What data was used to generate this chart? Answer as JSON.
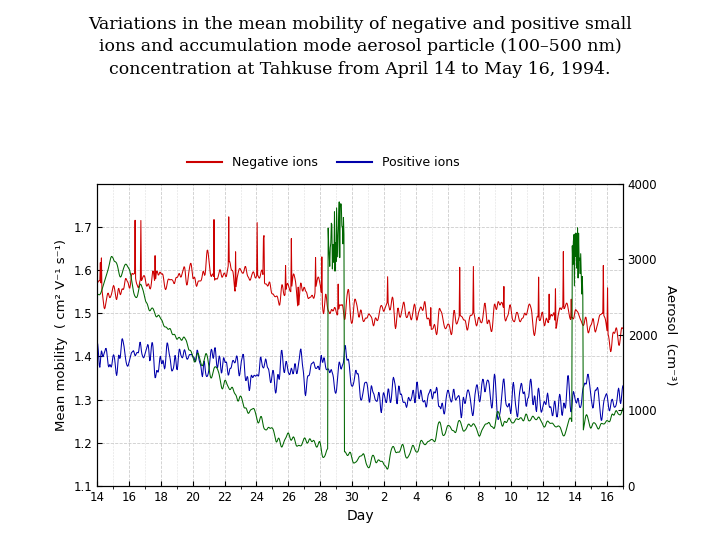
{
  "title_line1": "Variations in the mean mobility of negative and positive small",
  "title_line2": "ions and accumulation mode aerosol particle (100–500 nm)",
  "title_line3": "concentration at Tahkuse from April 14 to May 16, 1994.",
  "title_fontsize": 12.5,
  "xlabel": "Day",
  "ylabel_left": "Mean mobility  ( cm² V⁻¹ s⁻¹)",
  "ylabel_right": "Aerosol  (cm⁻³)",
  "ylim_left": [
    1.1,
    1.8
  ],
  "ylim_right": [
    0,
    4000
  ],
  "yticks_left": [
    1.1,
    1.2,
    1.3,
    1.4,
    1.5,
    1.6,
    1.7
  ],
  "yticks_right": [
    0,
    1000,
    2000,
    3000,
    4000
  ],
  "color_negative": "#cc0000",
  "color_positive": "#0000aa",
  "color_aerosol": "#006600",
  "legend_negative": "Negative ions",
  "legend_positive": "Positive ions",
  "background_plot": "#ffffff",
  "grid_color": "#999999",
  "grid_style": "--",
  "grid_alpha": 0.5,
  "seed": 42,
  "n_points": 1000
}
